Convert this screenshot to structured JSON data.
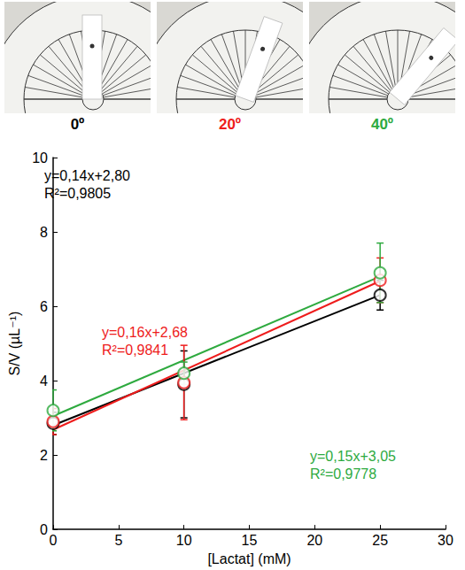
{
  "chart_data": {
    "type": "scatter",
    "x_label": "[Lactat] (mM)",
    "y_label": "S/V (µL⁻¹)",
    "xlim": [
      0,
      30
    ],
    "xticks": [
      0,
      5,
      10,
      15,
      20,
      25,
      30
    ],
    "ylim": [
      0,
      10
    ],
    "yticks": [
      0,
      2,
      4,
      6,
      8,
      10
    ],
    "grid": false,
    "marker": "circle",
    "series": [
      {
        "name": "0º",
        "color": "#000000",
        "x": [
          0,
          10,
          25
        ],
        "values": [
          2.85,
          3.9,
          6.3
        ],
        "errors": [
          0.3,
          0.9,
          0.4
        ],
        "fit": {
          "slope": 0.14,
          "intercept": 2.8
        },
        "annotation": [
          "y=0,14x+2,80",
          "R²=0,9805"
        ]
      },
      {
        "name": "20º",
        "color": "#ee1c1c",
        "x": [
          0,
          10,
          25
        ],
        "values": [
          2.9,
          3.95,
          6.7
        ],
        "errors": [
          0.35,
          1.0,
          0.6
        ],
        "fit": {
          "slope": 0.16,
          "intercept": 2.68
        },
        "annotation": [
          "y=0,16x+2,68",
          "R²=0,9841"
        ]
      },
      {
        "name": "40º",
        "color": "#2eaa3f",
        "x": [
          0,
          10,
          25
        ],
        "values": [
          3.2,
          4.2,
          6.9
        ],
        "errors": [
          0.55,
          0.3,
          0.8
        ],
        "fit": {
          "slope": 0.15,
          "intercept": 3.05
        },
        "annotation": [
          "y=0,15x+3,05",
          "R²=0,9778"
        ]
      }
    ]
  }
}
